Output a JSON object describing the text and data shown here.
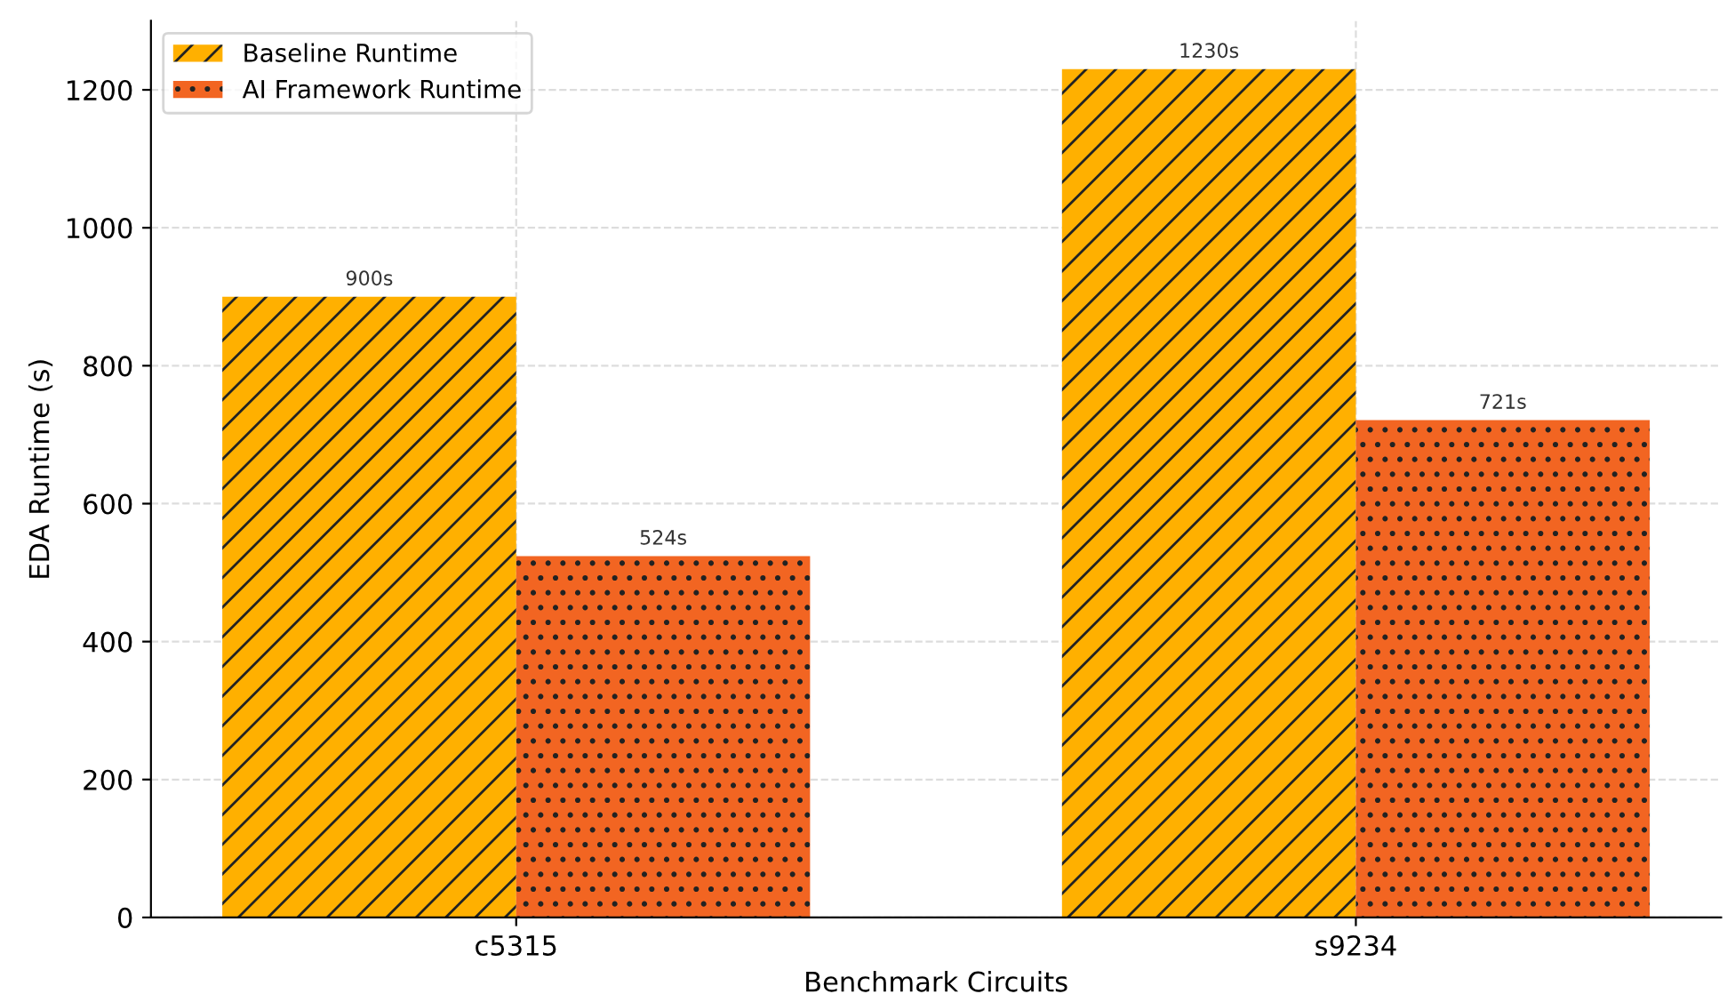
{
  "chart_data": {
    "type": "bar",
    "xlabel": "Benchmark Circuits",
    "ylabel": "EDA Runtime (s)",
    "categories": [
      "c5315",
      "s9234"
    ],
    "series": [
      {
        "name": "Baseline Runtime",
        "color": "#ffb000",
        "values": [
          900,
          1230
        ],
        "value_labels": [
          "900s",
          "1230s"
        ]
      },
      {
        "name": "AI Framework Runtime",
        "color": "#f26522",
        "values": [
          524,
          721
        ],
        "value_labels": [
          "524s",
          "721s"
        ]
      }
    ],
    "ylim": [
      0,
      1300
    ],
    "yticks": [
      0,
      200,
      400,
      600,
      800,
      1000,
      1200
    ],
    "grid": true,
    "legend": "top left"
  }
}
